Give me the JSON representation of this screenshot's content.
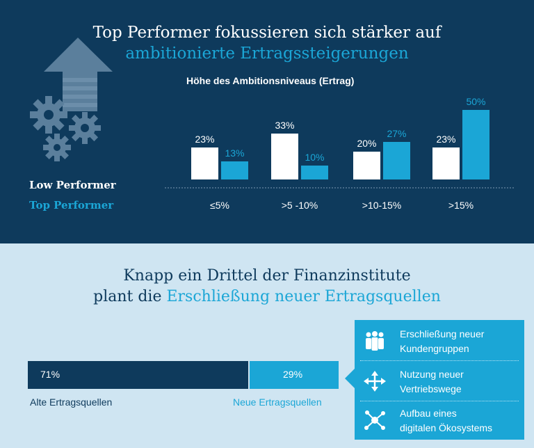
{
  "top": {
    "title_line1": "Top Performer fokussieren sich stärker auf",
    "title_line2": "ambitionierte Ertragssteigerungen",
    "subtitle": "Höhe des Ambitionsniveaus (Ertrag)",
    "legend_low": "Low Performer",
    "legend_top": "Top Performer"
  },
  "bottom": {
    "title_line1": "Knapp ein Drittel der Finanzinstitute",
    "title_line2_prefix": "plant die ",
    "title_line2_accent": "Erschließung neuer Ertragsquellen",
    "old_label": "Alte Ertragsquellen",
    "new_label": "Neue Ertragsquellen",
    "old_value_text": "71%",
    "new_value_text": "29%",
    "items": [
      {
        "line1": "Erschließung neuer",
        "line2": "Kundengruppen",
        "icon": "people-group-icon"
      },
      {
        "line1": "Nutzung neuer",
        "line2": "Vertriebswege",
        "icon": "move-arrows-icon"
      },
      {
        "line1": "Aufbau eines",
        "line2": "digitalen Ökosystems",
        "icon": "network-nodes-icon"
      }
    ]
  },
  "colors": {
    "dark": "#0e3a5c",
    "accent": "#1ba6d6",
    "white": "#ffffff",
    "light": "#cfe5f2"
  },
  "chart_data": [
    {
      "type": "bar",
      "title": "Höhe des Ambitionsniveaus (Ertrag)",
      "categories": [
        "≤5%",
        ">5 -10%",
        ">10-15%",
        ">15%"
      ],
      "series": [
        {
          "name": "Low Performer",
          "values": [
            23,
            33,
            20,
            23
          ],
          "labels": [
            "23%",
            "33%",
            "20%",
            "23%"
          ]
        },
        {
          "name": "Top Performer",
          "values": [
            13,
            10,
            27,
            50
          ],
          "labels": [
            "13%",
            "10%",
            "27%",
            "50%"
          ]
        }
      ],
      "ylim": [
        0,
        50
      ],
      "grid": false,
      "legend": "left"
    },
    {
      "type": "bar",
      "stacked": true,
      "categories": [
        "Alte Ertragsquellen",
        "Neue Ertragsquellen"
      ],
      "values": [
        71,
        29
      ],
      "labels": [
        "71%",
        "29%"
      ]
    }
  ]
}
